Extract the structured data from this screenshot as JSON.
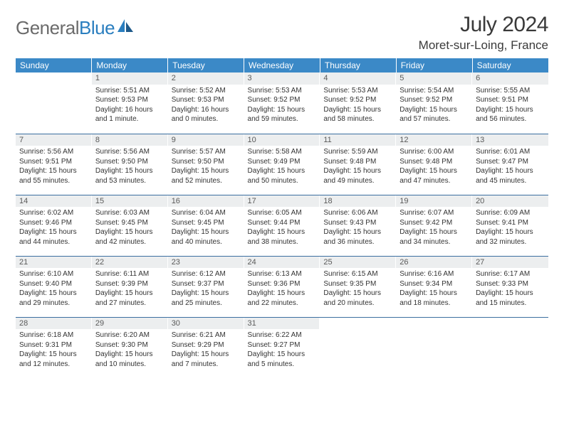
{
  "logo": {
    "part1": "General",
    "part2": "Blue"
  },
  "title": "July 2024",
  "location": "Moret-sur-Loing, France",
  "colors": {
    "header_bg": "#3b89c7",
    "header_text": "#ffffff",
    "daynum_bg": "#eceeef",
    "row_border": "#3b6fa0",
    "logo_gray": "#6b6b6b",
    "logo_blue": "#2a7ebf",
    "text": "#333333"
  },
  "weekdays": [
    "Sunday",
    "Monday",
    "Tuesday",
    "Wednesday",
    "Thursday",
    "Friday",
    "Saturday"
  ],
  "weeks": [
    [
      {
        "empty": true
      },
      {
        "n": "1",
        "sr": "Sunrise: 5:51 AM",
        "ss": "Sunset: 9:53 PM",
        "dl1": "Daylight: 16 hours",
        "dl2": "and 1 minute."
      },
      {
        "n": "2",
        "sr": "Sunrise: 5:52 AM",
        "ss": "Sunset: 9:53 PM",
        "dl1": "Daylight: 16 hours",
        "dl2": "and 0 minutes."
      },
      {
        "n": "3",
        "sr": "Sunrise: 5:53 AM",
        "ss": "Sunset: 9:52 PM",
        "dl1": "Daylight: 15 hours",
        "dl2": "and 59 minutes."
      },
      {
        "n": "4",
        "sr": "Sunrise: 5:53 AM",
        "ss": "Sunset: 9:52 PM",
        "dl1": "Daylight: 15 hours",
        "dl2": "and 58 minutes."
      },
      {
        "n": "5",
        "sr": "Sunrise: 5:54 AM",
        "ss": "Sunset: 9:52 PM",
        "dl1": "Daylight: 15 hours",
        "dl2": "and 57 minutes."
      },
      {
        "n": "6",
        "sr": "Sunrise: 5:55 AM",
        "ss": "Sunset: 9:51 PM",
        "dl1": "Daylight: 15 hours",
        "dl2": "and 56 minutes."
      }
    ],
    [
      {
        "n": "7",
        "sr": "Sunrise: 5:56 AM",
        "ss": "Sunset: 9:51 PM",
        "dl1": "Daylight: 15 hours",
        "dl2": "and 55 minutes."
      },
      {
        "n": "8",
        "sr": "Sunrise: 5:56 AM",
        "ss": "Sunset: 9:50 PM",
        "dl1": "Daylight: 15 hours",
        "dl2": "and 53 minutes."
      },
      {
        "n": "9",
        "sr": "Sunrise: 5:57 AM",
        "ss": "Sunset: 9:50 PM",
        "dl1": "Daylight: 15 hours",
        "dl2": "and 52 minutes."
      },
      {
        "n": "10",
        "sr": "Sunrise: 5:58 AM",
        "ss": "Sunset: 9:49 PM",
        "dl1": "Daylight: 15 hours",
        "dl2": "and 50 minutes."
      },
      {
        "n": "11",
        "sr": "Sunrise: 5:59 AM",
        "ss": "Sunset: 9:48 PM",
        "dl1": "Daylight: 15 hours",
        "dl2": "and 49 minutes."
      },
      {
        "n": "12",
        "sr": "Sunrise: 6:00 AM",
        "ss": "Sunset: 9:48 PM",
        "dl1": "Daylight: 15 hours",
        "dl2": "and 47 minutes."
      },
      {
        "n": "13",
        "sr": "Sunrise: 6:01 AM",
        "ss": "Sunset: 9:47 PM",
        "dl1": "Daylight: 15 hours",
        "dl2": "and 45 minutes."
      }
    ],
    [
      {
        "n": "14",
        "sr": "Sunrise: 6:02 AM",
        "ss": "Sunset: 9:46 PM",
        "dl1": "Daylight: 15 hours",
        "dl2": "and 44 minutes."
      },
      {
        "n": "15",
        "sr": "Sunrise: 6:03 AM",
        "ss": "Sunset: 9:45 PM",
        "dl1": "Daylight: 15 hours",
        "dl2": "and 42 minutes."
      },
      {
        "n": "16",
        "sr": "Sunrise: 6:04 AM",
        "ss": "Sunset: 9:45 PM",
        "dl1": "Daylight: 15 hours",
        "dl2": "and 40 minutes."
      },
      {
        "n": "17",
        "sr": "Sunrise: 6:05 AM",
        "ss": "Sunset: 9:44 PM",
        "dl1": "Daylight: 15 hours",
        "dl2": "and 38 minutes."
      },
      {
        "n": "18",
        "sr": "Sunrise: 6:06 AM",
        "ss": "Sunset: 9:43 PM",
        "dl1": "Daylight: 15 hours",
        "dl2": "and 36 minutes."
      },
      {
        "n": "19",
        "sr": "Sunrise: 6:07 AM",
        "ss": "Sunset: 9:42 PM",
        "dl1": "Daylight: 15 hours",
        "dl2": "and 34 minutes."
      },
      {
        "n": "20",
        "sr": "Sunrise: 6:09 AM",
        "ss": "Sunset: 9:41 PM",
        "dl1": "Daylight: 15 hours",
        "dl2": "and 32 minutes."
      }
    ],
    [
      {
        "n": "21",
        "sr": "Sunrise: 6:10 AM",
        "ss": "Sunset: 9:40 PM",
        "dl1": "Daylight: 15 hours",
        "dl2": "and 29 minutes."
      },
      {
        "n": "22",
        "sr": "Sunrise: 6:11 AM",
        "ss": "Sunset: 9:39 PM",
        "dl1": "Daylight: 15 hours",
        "dl2": "and 27 minutes."
      },
      {
        "n": "23",
        "sr": "Sunrise: 6:12 AM",
        "ss": "Sunset: 9:37 PM",
        "dl1": "Daylight: 15 hours",
        "dl2": "and 25 minutes."
      },
      {
        "n": "24",
        "sr": "Sunrise: 6:13 AM",
        "ss": "Sunset: 9:36 PM",
        "dl1": "Daylight: 15 hours",
        "dl2": "and 22 minutes."
      },
      {
        "n": "25",
        "sr": "Sunrise: 6:15 AM",
        "ss": "Sunset: 9:35 PM",
        "dl1": "Daylight: 15 hours",
        "dl2": "and 20 minutes."
      },
      {
        "n": "26",
        "sr": "Sunrise: 6:16 AM",
        "ss": "Sunset: 9:34 PM",
        "dl1": "Daylight: 15 hours",
        "dl2": "and 18 minutes."
      },
      {
        "n": "27",
        "sr": "Sunrise: 6:17 AM",
        "ss": "Sunset: 9:33 PM",
        "dl1": "Daylight: 15 hours",
        "dl2": "and 15 minutes."
      }
    ],
    [
      {
        "n": "28",
        "sr": "Sunrise: 6:18 AM",
        "ss": "Sunset: 9:31 PM",
        "dl1": "Daylight: 15 hours",
        "dl2": "and 12 minutes."
      },
      {
        "n": "29",
        "sr": "Sunrise: 6:20 AM",
        "ss": "Sunset: 9:30 PM",
        "dl1": "Daylight: 15 hours",
        "dl2": "and 10 minutes."
      },
      {
        "n": "30",
        "sr": "Sunrise: 6:21 AM",
        "ss": "Sunset: 9:29 PM",
        "dl1": "Daylight: 15 hours",
        "dl2": "and 7 minutes."
      },
      {
        "n": "31",
        "sr": "Sunrise: 6:22 AM",
        "ss": "Sunset: 9:27 PM",
        "dl1": "Daylight: 15 hours",
        "dl2": "and 5 minutes."
      },
      {
        "empty": true
      },
      {
        "empty": true
      },
      {
        "empty": true
      }
    ]
  ]
}
